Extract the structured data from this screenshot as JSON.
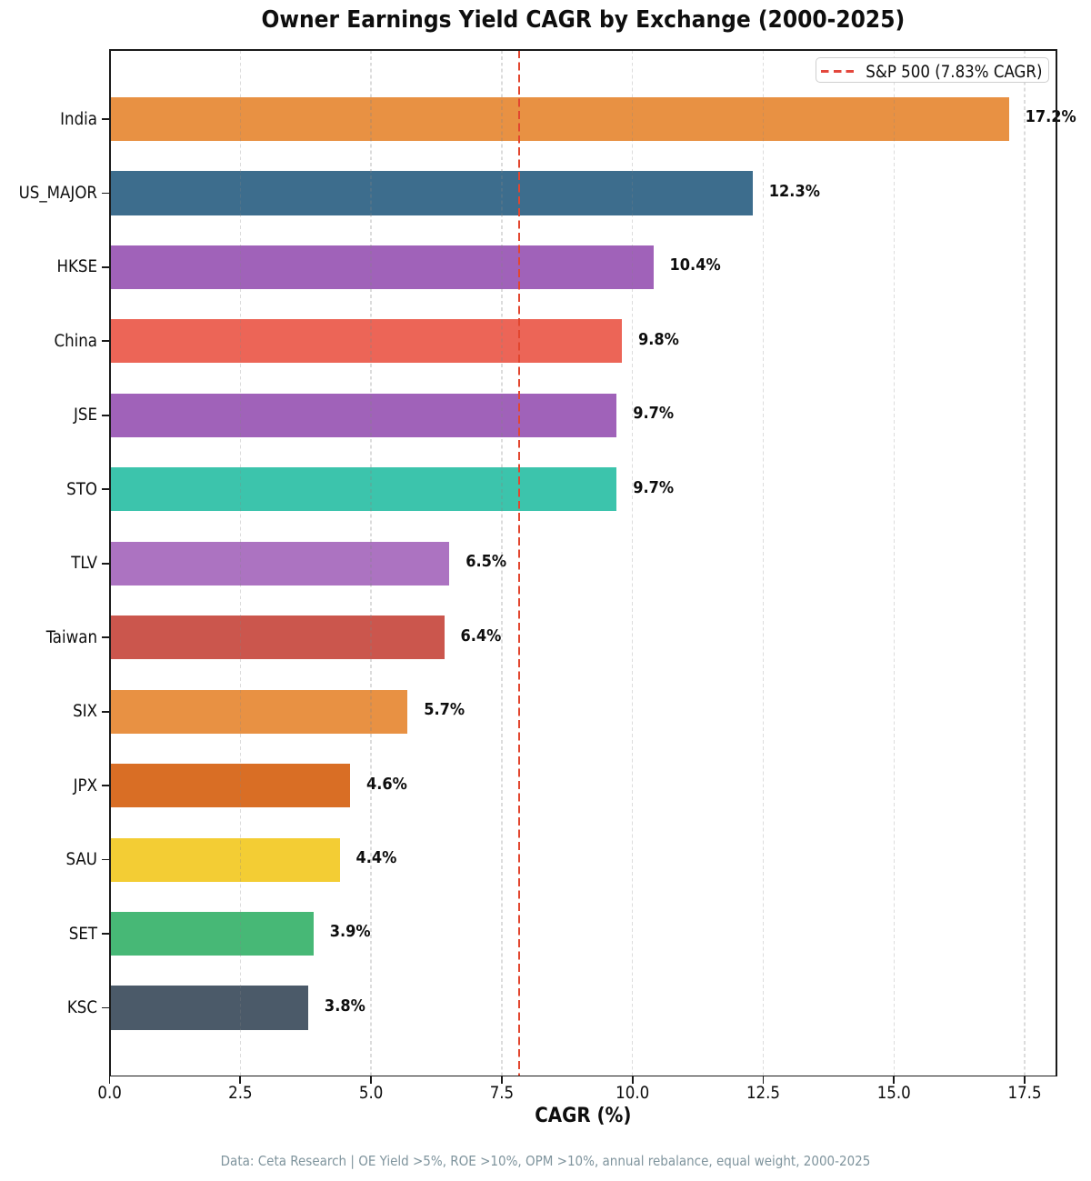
{
  "chart_data": {
    "type": "bar",
    "orientation": "horizontal",
    "title": "Owner Earnings Yield CAGR by Exchange (2000-2025)",
    "xlabel": "CAGR (%)",
    "categories": [
      "India",
      "US_MAJOR",
      "HKSE",
      "China",
      "JSE",
      "STO",
      "TLV",
      "Taiwan",
      "SIX",
      "JPX",
      "SAU",
      "SET",
      "KSC"
    ],
    "values": [
      17.2,
      12.3,
      10.4,
      9.8,
      9.7,
      9.7,
      6.5,
      6.4,
      5.7,
      4.6,
      4.4,
      3.9,
      3.8
    ],
    "value_labels": [
      "17.2%",
      "12.3%",
      "10.4%",
      "9.8%",
      "9.7%",
      "9.7%",
      "6.5%",
      "6.4%",
      "5.7%",
      "4.6%",
      "4.4%",
      "3.9%",
      "3.8%"
    ],
    "bar_colors": [
      "#e89143",
      "#3d6d8d",
      "#a062b9",
      "#ec6557",
      "#a062b9",
      "#3cc4ac",
      "#ac73c1",
      "#cb564d",
      "#e89143",
      "#d96e25",
      "#f3cd34",
      "#47b876",
      "#4b5a69"
    ],
    "xlim": [
      0,
      18.11
    ],
    "x_ticks": [
      0.0,
      2.5,
      5.0,
      7.5,
      10.0,
      12.5,
      15.0,
      17.5
    ],
    "x_tick_labels": [
      "0.0",
      "2.5",
      "5.0",
      "7.5",
      "10.0",
      "12.5",
      "15.0",
      "17.5"
    ],
    "grid": true,
    "legend": {
      "position": "upper right",
      "entries": [
        {
          "label": "S&P 500 (7.83% CAGR)",
          "style": "dashed",
          "color": "#e3473c"
        }
      ]
    },
    "reference_line": {
      "axis": "x",
      "value": 7.83,
      "style": "dashed",
      "color": "#e3473c"
    },
    "footer": "Data: Ceta Research | OE Yield >5%, ROE >10%, OPM >10%, annual rebalance, equal weight, 2000-2025"
  },
  "colors": {
    "text": "#0e0e0e",
    "footer_text": "#7f949d",
    "grid": "#dedede",
    "spine": "#1a1a1a",
    "legend_border": "#cfcfcf",
    "background": "#ffffff"
  }
}
